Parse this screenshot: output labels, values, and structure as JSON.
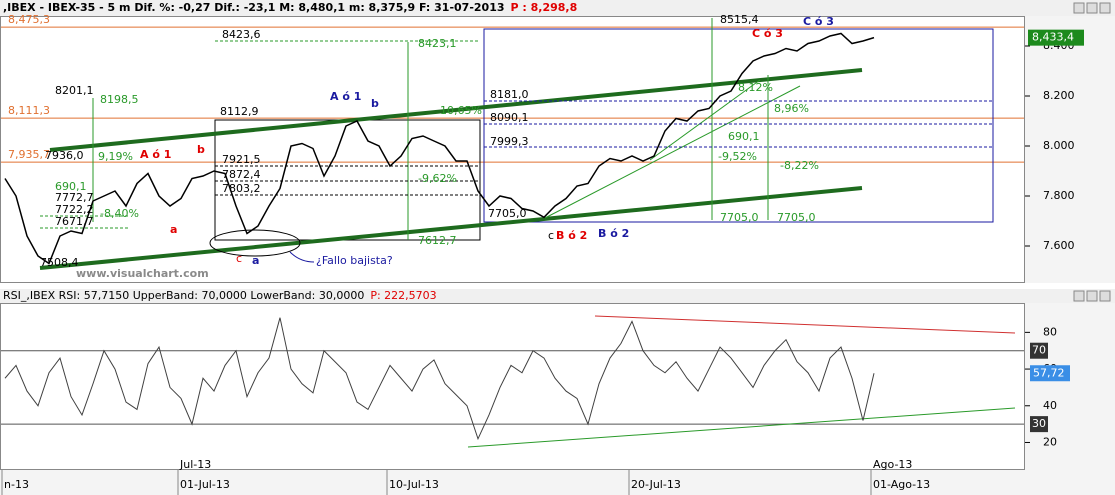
{
  "chart_data": [
    {
      "type": "line",
      "title": ",IBEX - IBEX-35 -  5 m Dif. %: -0,27 Dif.: -23,1 M: 8,480,1 m: 8,375,9 F: 31-07-2013",
      "title_extra": "P : 8,298,8",
      "color": "#000000",
      "values": [
        7870,
        7800,
        7640,
        7560,
        7530,
        7640,
        7660,
        7650,
        7780,
        7800,
        7820,
        7760,
        7850,
        7890,
        7800,
        7760,
        7790,
        7870,
        7880,
        7900,
        7890,
        7760,
        7650,
        7680,
        7760,
        7830,
        8000,
        8010,
        7990,
        7880,
        7960,
        8080,
        8100,
        8020,
        8000,
        7920,
        7960,
        8030,
        8040,
        8020,
        8000,
        7940,
        7940,
        7820,
        7760,
        7800,
        7790,
        7750,
        7740,
        7715,
        7760,
        7790,
        7840,
        7850,
        7920,
        7950,
        7940,
        7960,
        7940,
        7960,
        8060,
        8110,
        8100,
        8140,
        8150,
        8200,
        8220,
        8290,
        8340,
        8360,
        8370,
        8390,
        8380,
        8410,
        8420,
        8440,
        8450,
        8410,
        8420,
        8433.4
      ],
      "ylim": [
        7452,
        8520
      ],
      "yticks": [
        {
          "value": 8400,
          "label": "8.400"
        },
        {
          "value": 8200,
          "label": "8.200"
        },
        {
          "value": 8000,
          "label": "8.000"
        },
        {
          "value": 7800,
          "label": "7.800"
        },
        {
          "value": 7600,
          "label": "7.600"
        }
      ],
      "last_price": {
        "value": 8433.4,
        "label": "8,433,4"
      },
      "levels": [
        {
          "value": 8475.3,
          "label": "8,475,3"
        },
        {
          "value": 8111.3,
          "label": "8,111,3"
        },
        {
          "value": 7935.7,
          "label": "7,935,7"
        }
      ],
      "annotations": [
        "8423,6",
        "8423,1",
        "8515,4",
        "C ó 3",
        "C ó 3",
        "8201,1",
        "8198,5",
        "A ó 1",
        "b",
        "8112,9",
        "10,65%",
        "8181,0",
        "8090,1",
        "8,12%",
        "8,96%",
        "690,1",
        "7999,3",
        "-9,52%",
        "-8,22%",
        "7936,0",
        "9,19%",
        "A ó 1",
        "b",
        "7921,5",
        "7872,4",
        "-9,62%",
        "7803,2",
        "7772,7",
        "690,1",
        "7722,2",
        "-8,40%",
        "7671,7",
        "a",
        "7705,0",
        "7705,0",
        "7705,0",
        "7612,7",
        "c",
        "a",
        "¿Fallo bajista?",
        "c",
        "B ó 2",
        "B ó 2",
        "www.visualchart.com",
        "7508,4"
      ]
    },
    {
      "type": "line",
      "title": "RSI_,IBEX RSI: 57,7150 UpperBand: 70,0000 LowerBand: 30,0000",
      "title_extra": "P: 222,5703",
      "color": "#404040",
      "values": [
        55,
        62,
        48,
        40,
        58,
        66,
        45,
        35,
        52,
        70,
        60,
        42,
        38,
        63,
        72,
        50,
        44,
        30,
        55,
        48,
        62,
        70,
        45,
        58,
        66,
        88,
        60,
        52,
        47,
        70,
        64,
        58,
        42,
        38,
        50,
        62,
        55,
        48,
        60,
        65,
        52,
        46,
        40,
        22,
        35,
        50,
        62,
        58,
        70,
        66,
        55,
        48,
        44,
        30,
        52,
        66,
        74,
        86,
        70,
        62,
        58,
        64,
        55,
        48,
        60,
        72,
        66,
        58,
        50,
        62,
        70,
        76,
        64,
        58,
        48,
        66,
        72,
        55,
        32,
        57.72
      ],
      "categories": [
        "n-13",
        null,
        null,
        null,
        null,
        null,
        null,
        null,
        null,
        null,
        null,
        null,
        null,
        null,
        null,
        null,
        "01-Jul-13",
        null,
        null,
        null,
        null,
        null,
        null,
        null,
        null,
        null,
        null,
        null,
        null,
        null,
        null,
        null,
        null,
        null,
        null,
        "10-Jul-13",
        null,
        null,
        null,
        null,
        null,
        null,
        null,
        null,
        null,
        null,
        null,
        null,
        null,
        null,
        null,
        null,
        null,
        null,
        null,
        null,
        null,
        "20-Jul-13",
        null,
        null,
        null,
        null,
        null,
        null,
        null,
        null,
        null,
        null,
        null,
        null,
        null,
        null,
        null,
        null,
        null,
        null,
        null,
        null,
        null,
        "01-Ago-13"
      ],
      "month_categories": [
        null,
        null,
        null,
        null,
        null,
        null,
        null,
        null,
        null,
        null,
        null,
        null,
        null,
        null,
        null,
        null,
        "Jul-13",
        null,
        null,
        null,
        null,
        null,
        null,
        null,
        null,
        null,
        null,
        null,
        null,
        null,
        null,
        null,
        null,
        null,
        null,
        null,
        null,
        null,
        null,
        null,
        null,
        null,
        null,
        null,
        null,
        null,
        null,
        null,
        null,
        null,
        null,
        null,
        null,
        null,
        null,
        null,
        null,
        null,
        null,
        null,
        null,
        null,
        null,
        null,
        null,
        null,
        null,
        null,
        null,
        null,
        null,
        null,
        null,
        null,
        null,
        null,
        null,
        null,
        null,
        "Ago-13"
      ],
      "ylim": [
        5,
        96
      ],
      "yticks": [
        80,
        60,
        40,
        20
      ],
      "bands": [
        70,
        30
      ],
      "last_value": {
        "value": 57.72,
        "label": "57,72"
      }
    }
  ]
}
